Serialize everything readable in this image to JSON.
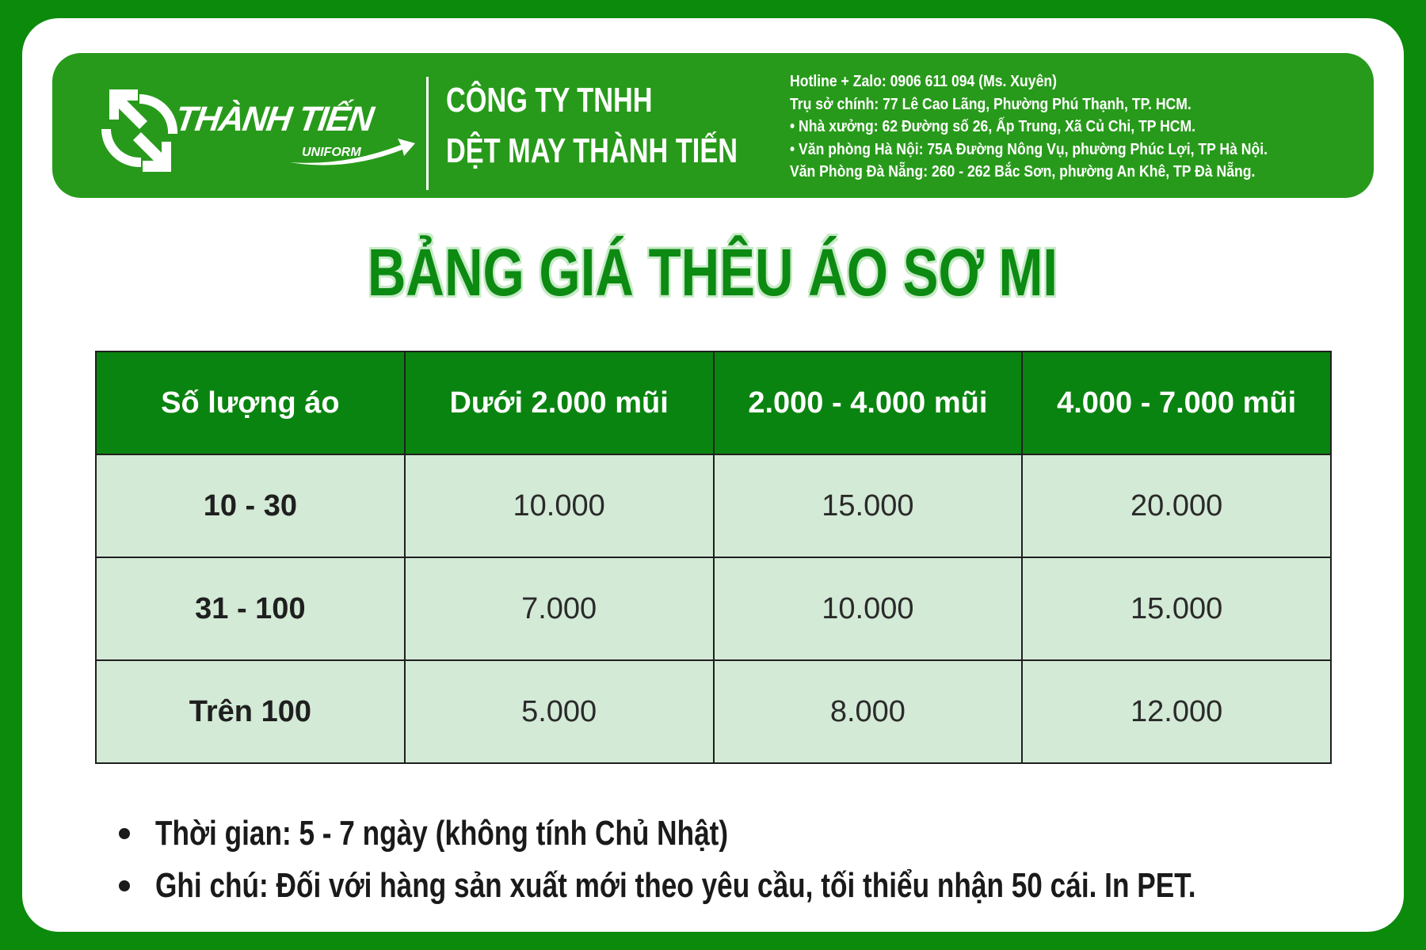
{
  "brand": {
    "logo_text": "THÀNH TIẾN",
    "logo_sub": "UNIFORM",
    "colors": {
      "border": "#0b8a0b",
      "header": "#289a1b",
      "table_header": "#0a8410",
      "table_body": "#d3ead6",
      "title": "#0c8a12"
    }
  },
  "company": {
    "line1": "CÔNG TY TNHH",
    "line2": "DỆT MAY THÀNH TIẾN"
  },
  "contacts": [
    "Hotline + Zalo: 0906 611 094 (Ms. Xuyên)",
    "Trụ sở chính: 77 Lê Cao Lãng, Phường Phú Thạnh, TP. HCM.",
    "• Nhà xưởng: 62 Đường số 26, Ấp Trung, Xã Củ Chi, TP HCM.",
    "• Văn phòng Hà Nội: 75A Đường Nông Vụ, phường Phúc Lợi, TP Hà Nội.",
    "Văn Phòng Đà Nẵng: 260 - 262 Bắc Sơn, phường An Khê, TP Đà Nẵng."
  ],
  "title": "BẢNG GIÁ THÊU ÁO SƠ MI",
  "table": {
    "headers": [
      "Số lượng áo",
      "Dưới 2.000 mũi",
      "2.000 - 4.000 mũi",
      "4.000 - 7.000 mũi"
    ],
    "rows": [
      [
        "10 - 30",
        "10.000",
        "15.000",
        "20.000"
      ],
      [
        "31 - 100",
        "7.000",
        "10.000",
        "15.000"
      ],
      [
        "Trên 100",
        "5.000",
        "8.000",
        "12.000"
      ]
    ]
  },
  "notes": [
    "Thời gian: 5 - 7 ngày (không tính Chủ Nhật)",
    "Ghi chú: Đối với hàng sản xuất mới theo yêu cầu, tối thiểu nhận 50 cái. In PET."
  ]
}
